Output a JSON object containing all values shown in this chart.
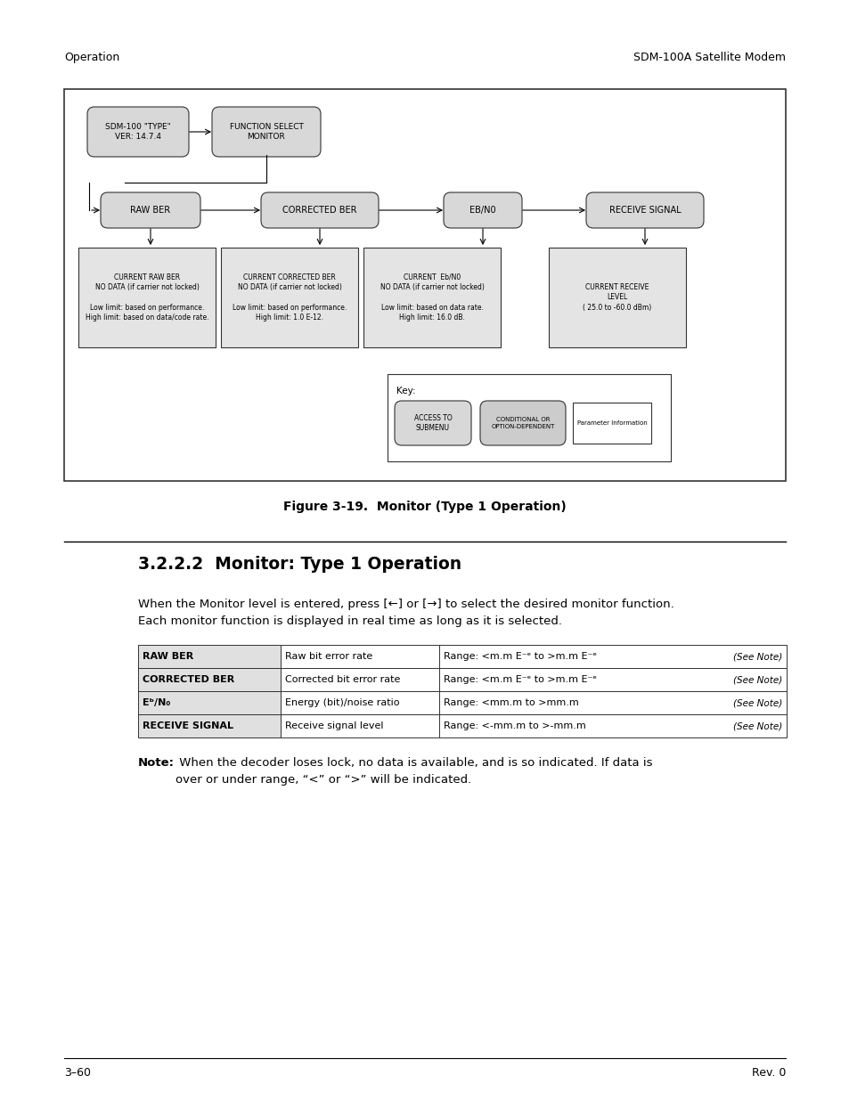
{
  "page_header_left": "Operation",
  "page_header_right": "SDM-100A Satellite Modem",
  "figure_caption": "Figure 3-19.  Monitor (Type 1 Operation)",
  "section_title": "3.2.2.2  Monitor: Type 1 Operation",
  "body_text1": "When the Monitor level is entered, press [←] or [→] to select the desired monitor function.\nEach monitor function is displayed in real time as long as it is selected.",
  "table_rows": [
    [
      "RAW BER",
      "Raw bit error rate",
      "Range: <m.m E⁻ᵉ to >m.m E⁻ᵉ",
      "(See Note)"
    ],
    [
      "CORRECTED BER",
      "Corrected bit error rate",
      "Range: <m.m E⁻ᵉ to >m.m E⁻ᵉ",
      "(See Note)"
    ],
    [
      "Eᵇ/N₀",
      "Energy (bit)/noise ratio",
      "Range: <mm.m to >mm.m",
      "(See Note)"
    ],
    [
      "RECEIVE SIGNAL",
      "Receive signal level",
      "Range: <-mm.m to >-mm.m",
      "(See Note)"
    ]
  ],
  "page_footer_left": "3–60",
  "page_footer_right": "Rev. 0"
}
